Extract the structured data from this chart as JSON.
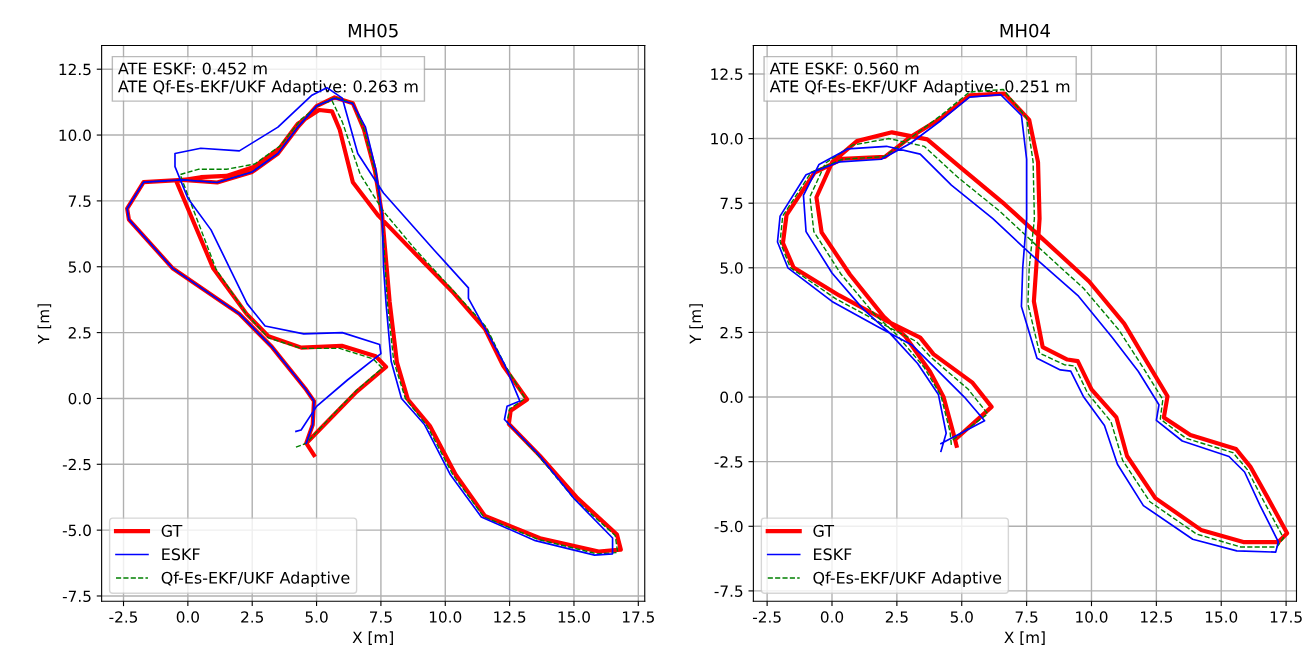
{
  "chart_data": [
    {
      "type": "line",
      "title": "MH05",
      "xlabel": "X [m]",
      "ylabel": "Y [m]",
      "xlim": [
        -3.35,
        17.75
      ],
      "ylim": [
        -7.7,
        13.4
      ],
      "xticks": [
        -2.5,
        {
          "value": 0,
          "label": "0.0"
        },
        2.5,
        {
          "value": 5,
          "label": "5.0"
        },
        7.5,
        {
          "value": 10,
          "label": "10.0"
        },
        12.5,
        {
          "value": 15,
          "label": "15.0"
        },
        17.5
      ],
      "yticks": [
        -7.5,
        {
          "value": -5,
          "label": "-5.0"
        },
        -2.5,
        {
          "value": 0,
          "label": "0.0"
        },
        2.5,
        {
          "value": 5,
          "label": "5.0"
        },
        7.5,
        {
          "value": 10,
          "label": "10.0"
        },
        12.5
      ],
      "grid": true,
      "legend": "bottom left",
      "annotations": [
        "ATE ESKF: 0.452 m\nATE Qf-Es-EKF/UKF Adaptive: 0.263 m"
      ],
      "series": [
        {
          "name": "GT",
          "color": "#ff0000",
          "line_style": "solid",
          "x": [
            4.9,
            4.6,
            5.7,
            6.55,
            7.7,
            7.3,
            5.98,
            4.41,
            3.13,
            2.28,
            0.99,
            0.0,
            -0.45,
            0.5,
            1.5,
            2.56,
            3.56,
            4.27,
            5.1,
            5.6,
            5.9,
            6.41,
            7.41,
            8.69,
            10.26,
            11.54,
            12.25,
            13.18,
            12.54,
            12.47,
            13.68,
            15.1,
            16.67,
            16.82,
            15.96,
            13.68,
            11.54,
            10.4,
            9.4,
            8.55,
            8.12,
            7.84,
            7.55,
            7.27,
            6.84,
            6.41,
            5.7,
            5.0,
            4.27,
            3.5,
            2.5,
            1.14,
            -0.2,
            -1.72,
            -2.36,
            -2.29,
            -0.58,
            2.0,
            3.27,
            4.56,
            4.9,
            4.85,
            4.6
          ],
          "values": [
            -2.15,
            -1.7,
            -0.6,
            0.25,
            1.2,
            1.6,
            2.0,
            1.93,
            2.36,
            3.21,
            4.93,
            7.21,
            8.25,
            8.4,
            8.45,
            8.79,
            9.5,
            10.43,
            10.95,
            10.9,
            10.2,
            8.21,
            6.93,
            5.64,
            4.07,
            2.64,
            1.24,
            -0.04,
            -0.47,
            -0.97,
            -2.18,
            -3.75,
            -5.17,
            -5.74,
            -5.81,
            -5.31,
            -4.46,
            -2.89,
            -1.04,
            -0.04,
            1.38,
            3.66,
            6.93,
            8.64,
            10.21,
            11.21,
            11.43,
            11.1,
            10.3,
            9.3,
            8.6,
            8.2,
            8.3,
            8.21,
            7.21,
            6.79,
            4.93,
            3.21,
            1.95,
            0.38,
            -0.1,
            -1.0,
            -1.7
          ]
        },
        {
          "name": "ESKF",
          "color": "#0000ff",
          "line_style": "solid",
          "x": [
            4.2,
            4.4,
            5.0,
            6.2,
            7.5,
            7.45,
            6.0,
            4.5,
            3.0,
            2.3,
            1.7,
            0.9,
            0.0,
            -0.5,
            -0.5,
            0.5,
            2.0,
            3.5,
            4.8,
            5.4,
            6.0,
            6.6,
            7.6,
            9.6,
            10.9,
            10.9,
            12.3,
            12.9,
            12.4,
            12.3,
            13.6,
            15.0,
            16.5,
            16.5,
            15.8,
            13.5,
            11.4,
            10.2,
            9.2,
            8.3,
            7.9,
            7.7,
            7.6,
            7.55,
            7.3,
            6.9,
            6.4,
            5.7,
            5.0,
            4.27,
            3.5,
            2.5,
            1.14,
            -0.2,
            -1.72,
            -2.36,
            -2.29,
            -0.58,
            2.0,
            3.27,
            4.56,
            4.9,
            4.85,
            4.6
          ],
          "values": [
            -1.25,
            -1.2,
            -0.3,
            0.7,
            1.7,
            2.05,
            2.5,
            2.45,
            2.75,
            3.6,
            4.8,
            6.4,
            7.6,
            8.8,
            9.3,
            9.5,
            9.4,
            10.3,
            11.5,
            11.8,
            11.4,
            9.3,
            7.8,
            5.6,
            4.2,
            3.8,
            1.3,
            -0.1,
            -0.3,
            -0.8,
            -2.1,
            -3.8,
            -5.3,
            -5.9,
            -5.95,
            -5.4,
            -4.5,
            -2.9,
            -1.0,
            0.0,
            1.4,
            3.6,
            5.0,
            7.0,
            8.7,
            10.3,
            11.2,
            11.4,
            11.1,
            10.3,
            9.3,
            8.6,
            8.2,
            8.3,
            8.21,
            7.21,
            6.79,
            4.93,
            3.21,
            1.95,
            0.38,
            -0.1,
            -1.0,
            -1.7
          ]
        },
        {
          "name": "Qf-Es-EKF/UKF Adaptive",
          "color": "#008000",
          "line_style": "dashed",
          "x": [
            4.2,
            4.6,
            5.7,
            6.55,
            7.55,
            7.2,
            5.9,
            4.41,
            3.13,
            2.28,
            1.1,
            0.2,
            -0.3,
            0.4,
            1.5,
            2.6,
            3.6,
            4.4,
            5.2,
            5.6,
            6.0,
            6.7,
            7.6,
            8.8,
            10.3,
            11.6,
            12.3,
            13.1,
            12.5,
            12.4,
            13.6,
            15.0,
            16.6,
            16.7,
            15.9,
            13.6,
            11.5,
            10.3,
            9.3,
            8.45,
            8.0,
            7.75,
            7.55,
            7.27,
            6.84,
            6.41,
            5.7,
            5.0,
            4.27,
            3.5,
            2.5,
            1.14,
            -0.2,
            -1.72,
            -2.36,
            -2.29,
            -0.58,
            2.0,
            3.27,
            4.56,
            4.9,
            4.85,
            4.6
          ],
          "values": [
            -1.85,
            -1.7,
            -0.55,
            0.3,
            1.15,
            1.5,
            1.9,
            1.9,
            2.3,
            3.2,
            4.9,
            7.2,
            8.5,
            8.7,
            8.7,
            8.9,
            9.6,
            10.6,
            11.2,
            11.3,
            10.5,
            8.5,
            7.1,
            5.7,
            4.1,
            2.7,
            1.3,
            0.0,
            -0.4,
            -0.9,
            -2.15,
            -3.8,
            -5.2,
            -5.85,
            -5.9,
            -5.35,
            -4.5,
            -2.9,
            -1.05,
            0.0,
            1.4,
            3.65,
            6.9,
            8.64,
            10.21,
            11.21,
            11.43,
            11.1,
            10.3,
            9.3,
            8.6,
            8.2,
            8.3,
            8.21,
            7.21,
            6.79,
            4.93,
            3.21,
            1.95,
            0.38,
            -0.1,
            -1.0,
            -1.7
          ]
        }
      ]
    },
    {
      "type": "line",
      "title": "MH04",
      "xlabel": "X [m]",
      "ylabel": "Y [m]",
      "xlim": [
        -3.03,
        17.9
      ],
      "ylim": [
        -7.9,
        13.6
      ],
      "xticks": [
        -2.5,
        {
          "value": 0,
          "label": "0.0"
        },
        2.5,
        {
          "value": 5,
          "label": "5.0"
        },
        7.5,
        {
          "value": 10,
          "label": "10.0"
        },
        12.5,
        {
          "value": 15,
          "label": "15.0"
        },
        17.5
      ],
      "yticks": [
        -7.5,
        {
          "value": -5,
          "label": "-5.0"
        },
        -2.5,
        {
          "value": 0,
          "label": "0.0"
        },
        2.5,
        {
          "value": 5,
          "label": "5.0"
        },
        7.5,
        {
          "value": 10,
          "label": "10.0"
        },
        12.5
      ],
      "grid": true,
      "legend": "bottom left",
      "annotations": [
        "ATE ESKF: 0.560 m\nATE Qf-Es-EKF/UKF Adaptive: 0.251 m"
      ],
      "series": [
        {
          "name": "GT",
          "color": "#ff0000",
          "line_style": "solid",
          "x": [
            4.8,
            4.66,
            4.3,
            3.78,
            2.83,
            2.0,
            0.69,
            -0.4,
            -0.6,
            0.01,
            0.96,
            2.31,
            3.67,
            5.03,
            6.65,
            8.14,
            9.91,
            11.26,
            12.14,
            12.93,
            12.79,
            13.81,
            15.57,
            16.12,
            16.8,
            17.54,
            17.2,
            15.85,
            14.22,
            12.46,
            11.37,
            10.96,
            10.0,
            9.47,
            9.07,
            8.12,
            7.78,
            7.87,
            8.0,
            7.94,
            7.6,
            6.65,
            5.3,
            4.21,
            2.99,
            2.04,
            0.42,
            -0.67,
            -1.75,
            -1.89,
            -1.48,
            0.28,
            2.04,
            3.4,
            3.91,
            5.4,
            6.15,
            4.8
          ],
          "values": [
            -1.88,
            -1.33,
            0.0,
            0.98,
            2.34,
            3.1,
            4.74,
            6.37,
            7.73,
            9.09,
            9.9,
            10.24,
            9.97,
            8.82,
            7.46,
            6.1,
            4.47,
            2.84,
            1.35,
            0.03,
            -0.79,
            -1.47,
            -2.01,
            -2.69,
            -3.91,
            -5.27,
            -5.61,
            -5.61,
            -5.14,
            -3.91,
            -2.28,
            -0.79,
            0.3,
            1.39,
            1.45,
            1.93,
            3.7,
            5.01,
            6.9,
            9.09,
            10.72,
            11.74,
            11.67,
            10.79,
            10.04,
            9.29,
            9.22,
            8.68,
            7.05,
            5.96,
            5.01,
            3.93,
            2.98,
            2.3,
            1.66,
            0.57,
            -0.38,
            -1.6
          ]
        },
        {
          "name": "ESKF",
          "color": "#0000ff",
          "line_style": "solid",
          "x": [
            4.2,
            4.4,
            4.1,
            3.3,
            2.2,
            1.2,
            0.0,
            -1.0,
            -1.1,
            -0.5,
            0.6,
            2.1,
            3.4,
            4.6,
            6.2,
            7.8,
            9.5,
            10.8,
            11.8,
            12.6,
            12.5,
            13.5,
            15.3,
            15.9,
            16.5,
            17.2,
            17.1,
            15.6,
            13.9,
            12.0,
            11.0,
            10.5,
            9.7,
            9.2,
            8.8,
            7.9,
            7.3,
            7.35,
            7.5,
            7.5,
            7.3,
            6.5,
            5.3,
            4.2,
            3.0,
            1.9,
            0.3,
            -1.0,
            -2.0,
            -2.1,
            -1.7,
            0.0,
            1.8,
            3.1,
            3.7,
            5.1,
            5.88,
            4.2
          ],
          "values": [
            -2.1,
            -1.4,
            0.1,
            1.3,
            2.5,
            3.4,
            4.8,
            6.4,
            7.8,
            9.0,
            9.6,
            9.7,
            9.4,
            8.2,
            6.9,
            5.4,
            3.9,
            2.3,
            1.0,
            -0.3,
            -0.9,
            -1.7,
            -2.3,
            -2.9,
            -4.2,
            -5.6,
            -6.0,
            -5.95,
            -5.5,
            -4.2,
            -2.6,
            -1.1,
            0.0,
            1.0,
            1.05,
            1.5,
            3.5,
            5.0,
            6.9,
            9.2,
            10.9,
            11.7,
            11.6,
            10.7,
            9.8,
            9.2,
            9.1,
            8.6,
            7.0,
            6.0,
            5.0,
            3.7,
            2.7,
            2.0,
            1.4,
            0.0,
            -0.92,
            -1.8
          ]
        },
        {
          "name": "Qf-Es-EKF/UKF Adaptive",
          "color": "#008000",
          "line_style": "dashed",
          "x": [
            4.6,
            4.55,
            4.2,
            3.55,
            2.5,
            1.6,
            0.35,
            -0.7,
            -0.85,
            -0.25,
            0.8,
            2.2,
            3.55,
            4.85,
            6.45,
            7.95,
            9.7,
            11.05,
            11.95,
            12.75,
            12.65,
            13.65,
            15.45,
            16.0,
            16.65,
            17.4,
            17.15,
            15.75,
            14.05,
            12.25,
            11.2,
            10.75,
            9.85,
            9.35,
            8.95,
            8.0,
            7.55,
            7.6,
            7.8,
            7.75,
            7.5,
            6.6,
            5.3,
            4.2,
            3.0,
            2.0,
            0.4,
            -0.8,
            -1.9,
            -2.0,
            -1.6,
            0.15,
            1.9,
            3.25,
            3.8,
            5.25,
            6.0,
            4.6
          ],
          "values": [
            -1.85,
            -1.35,
            0.05,
            1.15,
            2.4,
            3.25,
            4.75,
            6.4,
            7.75,
            9.05,
            9.75,
            10.0,
            9.7,
            8.5,
            7.2,
            5.8,
            4.2,
            2.6,
            1.2,
            -0.1,
            -0.85,
            -1.6,
            -2.15,
            -2.8,
            -4.05,
            -5.45,
            -5.8,
            -5.8,
            -5.3,
            -4.05,
            -2.45,
            -0.95,
            0.15,
            1.2,
            1.25,
            1.7,
            3.6,
            5.0,
            6.9,
            9.1,
            10.8,
            11.9,
            11.8,
            10.9,
            10.0,
            9.3,
            9.2,
            8.7,
            7.0,
            6.0,
            5.0,
            3.8,
            2.85,
            2.15,
            1.55,
            0.3,
            -0.65,
            -1.7
          ]
        }
      ]
    }
  ]
}
